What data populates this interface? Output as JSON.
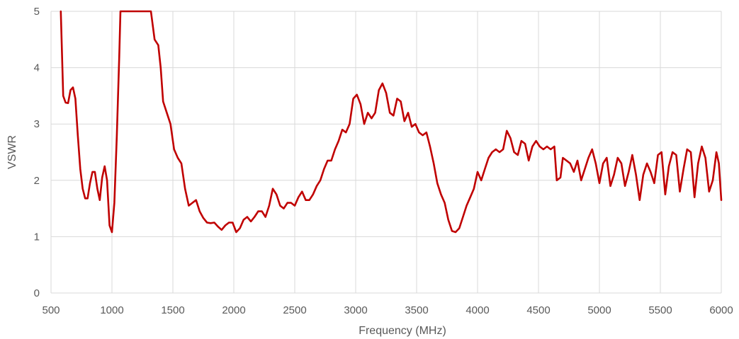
{
  "chart_data": {
    "type": "line",
    "title": "",
    "xlabel": "Frequency (MHz)",
    "ylabel": "VSWR",
    "xlim": [
      500,
      6000
    ],
    "ylim": [
      0,
      5
    ],
    "x_ticks": [
      500,
      1000,
      1500,
      2000,
      2500,
      3000,
      3500,
      4000,
      4500,
      5000,
      5500,
      6000
    ],
    "y_ticks": [
      0,
      1,
      2,
      3,
      4,
      5
    ],
    "grid": true,
    "legend": "none",
    "line_color": "#C00000",
    "grid_color": "#D9D9D9",
    "series": [
      {
        "points": [
          [
            580,
            5.0
          ],
          [
            600,
            3.5
          ],
          [
            620,
            3.38
          ],
          [
            640,
            3.37
          ],
          [
            660,
            3.6
          ],
          [
            680,
            3.65
          ],
          [
            700,
            3.45
          ],
          [
            720,
            2.8
          ],
          [
            740,
            2.2
          ],
          [
            760,
            1.85
          ],
          [
            780,
            1.68
          ],
          [
            800,
            1.68
          ],
          [
            820,
            1.95
          ],
          [
            840,
            2.15
          ],
          [
            860,
            2.15
          ],
          [
            880,
            1.85
          ],
          [
            900,
            1.65
          ],
          [
            920,
            2.05
          ],
          [
            940,
            2.25
          ],
          [
            960,
            2.0
          ],
          [
            980,
            1.2
          ],
          [
            1000,
            1.08
          ],
          [
            1020,
            1.6
          ],
          [
            1040,
            2.8
          ],
          [
            1060,
            4.2
          ],
          [
            1070,
            5.0
          ],
          [
            1320,
            5.0
          ],
          [
            1350,
            4.5
          ],
          [
            1380,
            4.4
          ],
          [
            1400,
            4.0
          ],
          [
            1420,
            3.4
          ],
          [
            1450,
            3.2
          ],
          [
            1480,
            3.0
          ],
          [
            1510,
            2.55
          ],
          [
            1540,
            2.4
          ],
          [
            1570,
            2.3
          ],
          [
            1600,
            1.85
          ],
          [
            1630,
            1.55
          ],
          [
            1660,
            1.6
          ],
          [
            1690,
            1.65
          ],
          [
            1720,
            1.45
          ],
          [
            1750,
            1.33
          ],
          [
            1780,
            1.25
          ],
          [
            1810,
            1.24
          ],
          [
            1840,
            1.25
          ],
          [
            1870,
            1.18
          ],
          [
            1900,
            1.12
          ],
          [
            1930,
            1.2
          ],
          [
            1960,
            1.25
          ],
          [
            1990,
            1.25
          ],
          [
            2020,
            1.08
          ],
          [
            2050,
            1.15
          ],
          [
            2080,
            1.3
          ],
          [
            2110,
            1.35
          ],
          [
            2140,
            1.27
          ],
          [
            2170,
            1.35
          ],
          [
            2200,
            1.45
          ],
          [
            2230,
            1.45
          ],
          [
            2260,
            1.35
          ],
          [
            2290,
            1.55
          ],
          [
            2320,
            1.85
          ],
          [
            2350,
            1.75
          ],
          [
            2380,
            1.55
          ],
          [
            2410,
            1.5
          ],
          [
            2440,
            1.6
          ],
          [
            2470,
            1.6
          ],
          [
            2500,
            1.55
          ],
          [
            2530,
            1.7
          ],
          [
            2560,
            1.8
          ],
          [
            2590,
            1.65
          ],
          [
            2620,
            1.65
          ],
          [
            2650,
            1.75
          ],
          [
            2680,
            1.9
          ],
          [
            2710,
            2.0
          ],
          [
            2740,
            2.2
          ],
          [
            2770,
            2.35
          ],
          [
            2800,
            2.35
          ],
          [
            2830,
            2.55
          ],
          [
            2860,
            2.7
          ],
          [
            2890,
            2.9
          ],
          [
            2920,
            2.85
          ],
          [
            2950,
            3.0
          ],
          [
            2980,
            3.45
          ],
          [
            3010,
            3.52
          ],
          [
            3040,
            3.35
          ],
          [
            3070,
            3.0
          ],
          [
            3100,
            3.2
          ],
          [
            3130,
            3.1
          ],
          [
            3160,
            3.2
          ],
          [
            3190,
            3.6
          ],
          [
            3220,
            3.72
          ],
          [
            3250,
            3.55
          ],
          [
            3280,
            3.2
          ],
          [
            3310,
            3.15
          ],
          [
            3340,
            3.45
          ],
          [
            3370,
            3.4
          ],
          [
            3400,
            3.05
          ],
          [
            3430,
            3.2
          ],
          [
            3460,
            2.95
          ],
          [
            3490,
            3.0
          ],
          [
            3520,
            2.85
          ],
          [
            3550,
            2.8
          ],
          [
            3580,
            2.85
          ],
          [
            3610,
            2.6
          ],
          [
            3640,
            2.3
          ],
          [
            3670,
            1.95
          ],
          [
            3700,
            1.75
          ],
          [
            3730,
            1.6
          ],
          [
            3760,
            1.3
          ],
          [
            3790,
            1.1
          ],
          [
            3820,
            1.08
          ],
          [
            3850,
            1.15
          ],
          [
            3880,
            1.35
          ],
          [
            3910,
            1.55
          ],
          [
            3940,
            1.7
          ],
          [
            3970,
            1.85
          ],
          [
            4000,
            2.15
          ],
          [
            4030,
            2.0
          ],
          [
            4060,
            2.2
          ],
          [
            4090,
            2.4
          ],
          [
            4120,
            2.5
          ],
          [
            4150,
            2.55
          ],
          [
            4180,
            2.5
          ],
          [
            4210,
            2.55
          ],
          [
            4240,
            2.88
          ],
          [
            4270,
            2.75
          ],
          [
            4300,
            2.5
          ],
          [
            4330,
            2.45
          ],
          [
            4360,
            2.7
          ],
          [
            4390,
            2.65
          ],
          [
            4420,
            2.35
          ],
          [
            4450,
            2.6
          ],
          [
            4480,
            2.7
          ],
          [
            4510,
            2.6
          ],
          [
            4540,
            2.55
          ],
          [
            4570,
            2.6
          ],
          [
            4600,
            2.55
          ],
          [
            4630,
            2.6
          ],
          [
            4650,
            2.0
          ],
          [
            4680,
            2.05
          ],
          [
            4700,
            2.4
          ],
          [
            4730,
            2.35
          ],
          [
            4760,
            2.3
          ],
          [
            4790,
            2.15
          ],
          [
            4820,
            2.35
          ],
          [
            4850,
            2.0
          ],
          [
            4880,
            2.2
          ],
          [
            4910,
            2.4
          ],
          [
            4940,
            2.55
          ],
          [
            4970,
            2.3
          ],
          [
            5000,
            1.95
          ],
          [
            5030,
            2.3
          ],
          [
            5060,
            2.4
          ],
          [
            5090,
            1.9
          ],
          [
            5120,
            2.1
          ],
          [
            5150,
            2.4
          ],
          [
            5180,
            2.3
          ],
          [
            5210,
            1.9
          ],
          [
            5240,
            2.15
          ],
          [
            5270,
            2.45
          ],
          [
            5300,
            2.1
          ],
          [
            5330,
            1.65
          ],
          [
            5360,
            2.1
          ],
          [
            5390,
            2.3
          ],
          [
            5420,
            2.15
          ],
          [
            5450,
            1.95
          ],
          [
            5480,
            2.45
          ],
          [
            5510,
            2.5
          ],
          [
            5540,
            1.75
          ],
          [
            5570,
            2.25
          ],
          [
            5600,
            2.5
          ],
          [
            5630,
            2.45
          ],
          [
            5660,
            1.8
          ],
          [
            5690,
            2.2
          ],
          [
            5720,
            2.55
          ],
          [
            5750,
            2.5
          ],
          [
            5780,
            1.7
          ],
          [
            5810,
            2.3
          ],
          [
            5840,
            2.6
          ],
          [
            5870,
            2.4
          ],
          [
            5900,
            1.8
          ],
          [
            5930,
            2.0
          ],
          [
            5960,
            2.5
          ],
          [
            5980,
            2.3
          ],
          [
            6000,
            1.65
          ]
        ]
      }
    ]
  }
}
